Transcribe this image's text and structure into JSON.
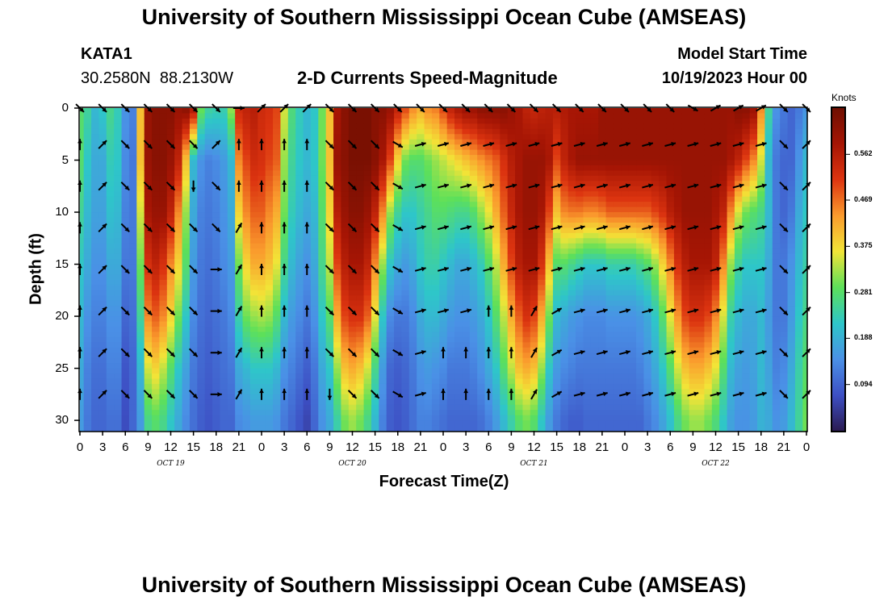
{
  "page": {
    "title": "University of Southern Mississippi Ocean Cube (AMSEAS)",
    "station_id": "KATA1",
    "station_coords": "30.2580N  88.2130W",
    "plot_subtitle": "2-D Currents Speed-Magnitude",
    "model_start_label": "Model Start Time",
    "model_start_value": "10/19/2023 Hour 00",
    "footer_title": "University of Southern Mississippi Ocean Cube (AMSEAS)"
  },
  "colors": {
    "ramp": [
      "#2a1a4f",
      "#3d4fc4",
      "#4a90e6",
      "#2ec6c9",
      "#5de05a",
      "#f2e437",
      "#fa9a2d",
      "#dc3410",
      "#a51504",
      "#6e0f02"
    ]
  },
  "chart_data": {
    "type": "heatmap",
    "title": "2-D Currents Speed-Magnitude",
    "xlabel": "Forecast Time(Z)",
    "ylabel": "Depth (ft)",
    "x_tick_labels": [
      "0",
      "3",
      "6",
      "9",
      "12",
      "15",
      "18",
      "21",
      "0",
      "3",
      "6",
      "9",
      "12",
      "15",
      "18",
      "21",
      "0",
      "3",
      "6",
      "9",
      "12",
      "15",
      "18",
      "21",
      "0",
      "3",
      "6",
      "9",
      "12",
      "15",
      "18",
      "21",
      "0"
    ],
    "x_day_labels": [
      "OCT 19",
      "OCT 20",
      "OCT 21",
      "OCT 22"
    ],
    "y_ticks": [
      0,
      5,
      10,
      15,
      20,
      25,
      30
    ],
    "ylim": [
      0,
      31
    ],
    "xlim_hours": [
      0,
      96
    ],
    "colorbar": {
      "label": "Knots",
      "ticks": [
        "0.562",
        "0.469",
        "0.375",
        "0.281",
        "0.188",
        "0.094"
      ],
      "range": [
        0,
        0.656
      ]
    },
    "speed_knots": {
      "hours_step": 1,
      "depths_ft": [
        0,
        5,
        10,
        15,
        20,
        25,
        30
      ],
      "rows": [
        [
          0.28,
          0.25,
          0.2,
          0.22,
          0.26,
          0.23,
          0.15,
          0.13,
          0.4,
          0.6,
          0.62,
          0.62,
          0.62,
          0.6,
          0.62,
          0.58,
          0.3,
          0.25,
          0.24,
          0.24,
          0.32,
          0.53,
          0.55,
          0.56,
          0.53,
          0.52,
          0.5,
          0.35,
          0.27,
          0.23,
          0.2,
          0.22,
          0.3,
          0.4,
          0.58,
          0.62,
          0.64,
          0.64,
          0.64,
          0.62,
          0.62,
          0.6,
          0.55,
          0.5,
          0.45,
          0.42,
          0.45,
          0.46,
          0.5,
          0.55,
          0.58,
          0.6,
          0.6,
          0.62,
          0.62,
          0.62,
          0.62,
          0.6,
          0.58,
          0.55,
          0.54,
          0.55,
          0.56,
          0.56,
          0.57,
          0.58,
          0.58,
          0.58,
          0.58,
          0.6,
          0.6,
          0.6,
          0.6,
          0.6,
          0.6,
          0.6,
          0.6,
          0.6,
          0.6,
          0.6,
          0.6,
          0.6,
          0.6,
          0.6,
          0.6,
          0.6,
          0.6,
          0.62,
          0.62,
          0.6,
          0.45,
          0.25,
          0.15,
          0.12,
          0.1,
          0.12,
          0.15
        ],
        [
          0.28,
          0.22,
          0.18,
          0.18,
          0.23,
          0.22,
          0.14,
          0.12,
          0.4,
          0.6,
          0.62,
          0.62,
          0.6,
          0.55,
          0.4,
          0.2,
          0.15,
          0.13,
          0.14,
          0.16,
          0.2,
          0.45,
          0.5,
          0.53,
          0.52,
          0.5,
          0.48,
          0.32,
          0.25,
          0.22,
          0.2,
          0.22,
          0.3,
          0.4,
          0.6,
          0.62,
          0.64,
          0.64,
          0.64,
          0.62,
          0.58,
          0.5,
          0.38,
          0.3,
          0.28,
          0.28,
          0.3,
          0.32,
          0.34,
          0.36,
          0.38,
          0.4,
          0.42,
          0.44,
          0.46,
          0.48,
          0.52,
          0.56,
          0.58,
          0.6,
          0.6,
          0.6,
          0.58,
          0.5,
          0.55,
          0.58,
          0.6,
          0.6,
          0.6,
          0.6,
          0.6,
          0.6,
          0.6,
          0.6,
          0.6,
          0.6,
          0.6,
          0.6,
          0.6,
          0.6,
          0.6,
          0.6,
          0.6,
          0.6,
          0.6,
          0.6,
          0.58,
          0.55,
          0.5,
          0.45,
          0.35,
          0.2,
          0.12,
          0.1,
          0.1,
          0.15,
          0.2
        ],
        [
          0.25,
          0.2,
          0.17,
          0.17,
          0.21,
          0.2,
          0.13,
          0.12,
          0.35,
          0.58,
          0.6,
          0.6,
          0.55,
          0.45,
          0.32,
          0.18,
          0.13,
          0.12,
          0.13,
          0.15,
          0.18,
          0.38,
          0.45,
          0.48,
          0.48,
          0.45,
          0.42,
          0.3,
          0.23,
          0.2,
          0.18,
          0.2,
          0.28,
          0.38,
          0.56,
          0.6,
          0.62,
          0.62,
          0.6,
          0.55,
          0.45,
          0.32,
          0.25,
          0.22,
          0.22,
          0.24,
          0.26,
          0.28,
          0.28,
          0.27,
          0.26,
          0.26,
          0.28,
          0.32,
          0.36,
          0.42,
          0.48,
          0.54,
          0.58,
          0.6,
          0.6,
          0.58,
          0.5,
          0.4,
          0.45,
          0.46,
          0.46,
          0.45,
          0.45,
          0.46,
          0.48,
          0.48,
          0.48,
          0.48,
          0.48,
          0.48,
          0.5,
          0.52,
          0.56,
          0.58,
          0.6,
          0.6,
          0.6,
          0.6,
          0.58,
          0.55,
          0.45,
          0.35,
          0.3,
          0.28,
          0.26,
          0.2,
          0.12,
          0.1,
          0.12,
          0.18,
          0.22
        ],
        [
          0.22,
          0.18,
          0.15,
          0.15,
          0.18,
          0.18,
          0.12,
          0.12,
          0.3,
          0.52,
          0.55,
          0.52,
          0.45,
          0.38,
          0.28,
          0.16,
          0.12,
          0.11,
          0.12,
          0.14,
          0.16,
          0.3,
          0.38,
          0.42,
          0.42,
          0.4,
          0.36,
          0.26,
          0.2,
          0.17,
          0.15,
          0.18,
          0.26,
          0.34,
          0.5,
          0.56,
          0.58,
          0.58,
          0.55,
          0.45,
          0.32,
          0.22,
          0.18,
          0.16,
          0.18,
          0.22,
          0.24,
          0.24,
          0.22,
          0.2,
          0.18,
          0.18,
          0.2,
          0.23,
          0.28,
          0.34,
          0.42,
          0.5,
          0.56,
          0.58,
          0.58,
          0.52,
          0.4,
          0.28,
          0.28,
          0.26,
          0.24,
          0.22,
          0.22,
          0.22,
          0.24,
          0.24,
          0.24,
          0.24,
          0.26,
          0.28,
          0.32,
          0.38,
          0.45,
          0.52,
          0.56,
          0.58,
          0.58,
          0.58,
          0.55,
          0.45,
          0.32,
          0.25,
          0.22,
          0.22,
          0.22,
          0.18,
          0.12,
          0.12,
          0.15,
          0.2,
          0.24
        ],
        [
          0.2,
          0.15,
          0.13,
          0.13,
          0.15,
          0.15,
          0.1,
          0.11,
          0.25,
          0.45,
          0.48,
          0.45,
          0.38,
          0.3,
          0.22,
          0.14,
          0.11,
          0.1,
          0.11,
          0.12,
          0.14,
          0.24,
          0.3,
          0.32,
          0.33,
          0.32,
          0.28,
          0.2,
          0.16,
          0.14,
          0.12,
          0.15,
          0.22,
          0.28,
          0.42,
          0.5,
          0.52,
          0.52,
          0.48,
          0.36,
          0.22,
          0.14,
          0.12,
          0.12,
          0.14,
          0.18,
          0.2,
          0.2,
          0.18,
          0.16,
          0.15,
          0.15,
          0.16,
          0.18,
          0.22,
          0.28,
          0.34,
          0.42,
          0.48,
          0.52,
          0.5,
          0.42,
          0.3,
          0.2,
          0.18,
          0.16,
          0.15,
          0.14,
          0.14,
          0.14,
          0.15,
          0.15,
          0.15,
          0.15,
          0.16,
          0.18,
          0.22,
          0.28,
          0.36,
          0.44,
          0.5,
          0.52,
          0.52,
          0.5,
          0.45,
          0.35,
          0.24,
          0.2,
          0.18,
          0.18,
          0.2,
          0.16,
          0.12,
          0.12,
          0.16,
          0.22,
          0.26
        ],
        [
          0.18,
          0.13,
          0.11,
          0.11,
          0.13,
          0.13,
          0.08,
          0.1,
          0.2,
          0.35,
          0.38,
          0.34,
          0.28,
          0.22,
          0.17,
          0.12,
          0.1,
          0.09,
          0.1,
          0.11,
          0.12,
          0.18,
          0.2,
          0.22,
          0.22,
          0.22,
          0.2,
          0.15,
          0.13,
          0.11,
          0.09,
          0.12,
          0.18,
          0.22,
          0.32,
          0.4,
          0.42,
          0.4,
          0.35,
          0.26,
          0.16,
          0.1,
          0.09,
          0.1,
          0.12,
          0.15,
          0.16,
          0.15,
          0.14,
          0.12,
          0.12,
          0.12,
          0.13,
          0.15,
          0.18,
          0.22,
          0.28,
          0.34,
          0.4,
          0.42,
          0.4,
          0.32,
          0.22,
          0.16,
          0.14,
          0.13,
          0.12,
          0.12,
          0.12,
          0.12,
          0.12,
          0.12,
          0.12,
          0.12,
          0.13,
          0.15,
          0.18,
          0.22,
          0.28,
          0.35,
          0.4,
          0.42,
          0.42,
          0.4,
          0.36,
          0.28,
          0.2,
          0.17,
          0.16,
          0.17,
          0.2,
          0.17,
          0.13,
          0.14,
          0.18,
          0.24,
          0.28
        ],
        [
          0.16,
          0.12,
          0.1,
          0.1,
          0.11,
          0.11,
          0.07,
          0.1,
          0.16,
          0.26,
          0.28,
          0.26,
          0.22,
          0.18,
          0.14,
          0.11,
          0.09,
          0.08,
          0.09,
          0.1,
          0.1,
          0.14,
          0.15,
          0.16,
          0.16,
          0.16,
          0.15,
          0.12,
          0.1,
          0.08,
          0.06,
          0.1,
          0.15,
          0.18,
          0.24,
          0.3,
          0.32,
          0.3,
          0.26,
          0.2,
          0.13,
          0.09,
          0.08,
          0.09,
          0.11,
          0.13,
          0.13,
          0.12,
          0.11,
          0.1,
          0.1,
          0.1,
          0.1,
          0.11,
          0.13,
          0.16,
          0.2,
          0.24,
          0.28,
          0.3,
          0.28,
          0.22,
          0.16,
          0.12,
          0.1,
          0.09,
          0.09,
          0.1,
          0.1,
          0.1,
          0.1,
          0.1,
          0.1,
          0.1,
          0.1,
          0.12,
          0.14,
          0.17,
          0.21,
          0.26,
          0.3,
          0.32,
          0.32,
          0.3,
          0.27,
          0.22,
          0.17,
          0.15,
          0.15,
          0.16,
          0.19,
          0.18,
          0.15,
          0.16,
          0.2,
          0.25,
          0.3
        ]
      ]
    },
    "vectors": {
      "hours": [
        0,
        3,
        6,
        9,
        12,
        15,
        18,
        21,
        24,
        27,
        30,
        33,
        36,
        39,
        42,
        45,
        48,
        51,
        54,
        57,
        60,
        63,
        66,
        69,
        72,
        75,
        78,
        81,
        84,
        87,
        90,
        93,
        96
      ],
      "depths_ft": [
        0,
        3.5,
        7.5,
        11.5,
        15.5,
        19.5,
        23.5,
        27.5
      ],
      "direction_deg": [
        [
          135,
          135,
          135,
          135,
          135,
          135,
          135,
          90,
          45,
          45,
          45,
          135,
          135,
          135,
          135,
          135,
          135,
          135,
          135,
          135,
          135,
          135,
          135,
          135,
          135,
          135,
          135,
          120,
          60,
          60,
          60,
          135,
          135
        ],
        [
          0,
          45,
          135,
          135,
          135,
          135,
          45,
          0,
          0,
          0,
          0,
          135,
          135,
          135,
          120,
          75,
          75,
          75,
          75,
          75,
          75,
          75,
          75,
          75,
          75,
          75,
          75,
          75,
          75,
          75,
          75,
          135,
          45
        ],
        [
          0,
          45,
          135,
          135,
          135,
          180,
          135,
          0,
          0,
          0,
          0,
          135,
          135,
          135,
          120,
          75,
          75,
          75,
          75,
          75,
          75,
          75,
          75,
          75,
          75,
          75,
          75,
          75,
          75,
          75,
          75,
          135,
          45
        ],
        [
          0,
          45,
          135,
          135,
          135,
          135,
          135,
          30,
          0,
          0,
          0,
          135,
          135,
          135,
          120,
          75,
          75,
          75,
          75,
          75,
          75,
          75,
          75,
          75,
          75,
          75,
          75,
          75,
          75,
          75,
          75,
          135,
          45
        ],
        [
          0,
          45,
          135,
          135,
          135,
          135,
          90,
          30,
          0,
          0,
          0,
          135,
          135,
          135,
          120,
          75,
          75,
          75,
          75,
          75,
          75,
          75,
          75,
          75,
          75,
          75,
          75,
          75,
          75,
          75,
          75,
          135,
          45
        ],
        [
          0,
          45,
          135,
          135,
          135,
          135,
          90,
          30,
          0,
          0,
          0,
          135,
          135,
          135,
          120,
          75,
          75,
          75,
          0,
          0,
          30,
          60,
          75,
          75,
          75,
          75,
          75,
          75,
          75,
          75,
          75,
          135,
          45
        ],
        [
          0,
          45,
          135,
          135,
          135,
          135,
          90,
          30,
          0,
          0,
          0,
          135,
          135,
          135,
          120,
          75,
          0,
          0,
          0,
          0,
          30,
          60,
          75,
          75,
          75,
          75,
          75,
          75,
          75,
          75,
          75,
          135,
          45
        ],
        [
          0,
          45,
          135,
          135,
          135,
          135,
          90,
          30,
          0,
          0,
          0,
          180,
          135,
          135,
          120,
          75,
          0,
          0,
          0,
          0,
          30,
          60,
          75,
          75,
          75,
          75,
          75,
          75,
          75,
          75,
          75,
          135,
          45
        ]
      ]
    }
  }
}
